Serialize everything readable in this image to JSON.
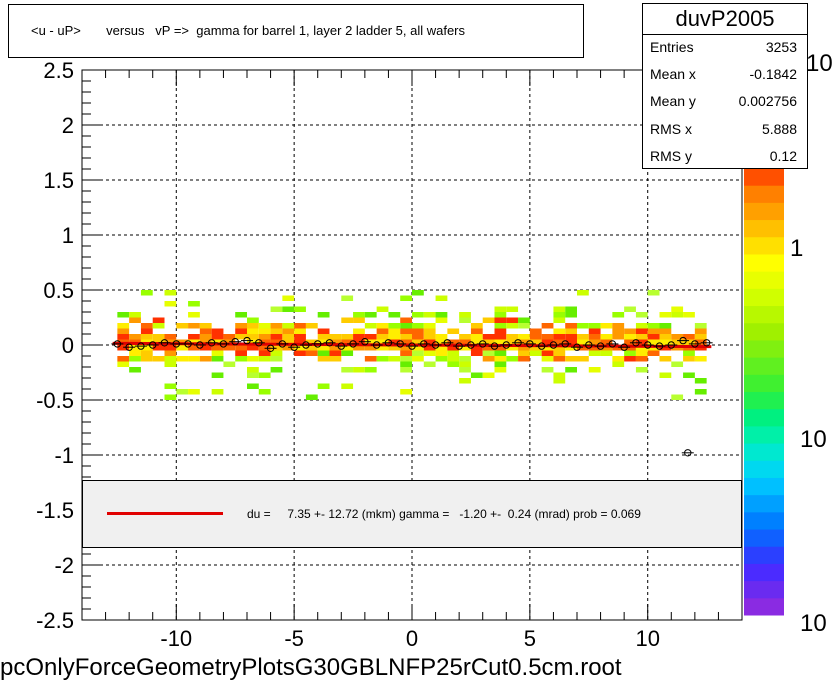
{
  "title": "<u - uP>       versus   vP =>  gamma for barrel 1, layer 2 ladder 5, all wafers",
  "stats": {
    "name": "duvP2005",
    "rows": [
      {
        "label": "Entries",
        "value": "3253"
      },
      {
        "label": "Mean x",
        "value": "-0.1842"
      },
      {
        "label": "Mean y",
        "value": "0.002756"
      },
      {
        "label": "RMS x",
        "value": "5.888"
      },
      {
        "label": "RMS y",
        "value": "0.12"
      }
    ]
  },
  "fit_legend": "du =     7.35 +- 12.72 (mkm) gamma =   -1.20 +-  0.24 (mrad) prob = 0.069",
  "filename": "pcOnlyForceGeometryPlotsG30GBLNFP25rCut0.5cm.root",
  "palette_labels": [
    "10",
    "1",
    "10",
    "10"
  ],
  "colors": {
    "fit": "#e00000",
    "grid": "#000000"
  },
  "chart_data": {
    "type": "scatter",
    "xlim": [
      -14,
      14
    ],
    "ylim": [
      -2.5,
      2.5
    ],
    "xticks": [
      -10,
      -5,
      0,
      5,
      10
    ],
    "yticks": [
      2.5,
      2,
      1.5,
      1,
      0.5,
      0,
      -0.5,
      -1,
      -1.5,
      -2,
      -2.5
    ],
    "grid": true,
    "fit_line": {
      "x": [
        -12.7,
        12.7
      ],
      "y": [
        0.015,
        -0.015
      ]
    },
    "profile": {
      "x": [
        -12.5,
        -12.0,
        -11.5,
        -11.0,
        -10.5,
        -10.0,
        -9.5,
        -9.0,
        -8.5,
        -8.0,
        -7.5,
        -7.0,
        -6.5,
        -6.0,
        -5.5,
        -5.0,
        -4.5,
        -4.0,
        -3.5,
        -3.0,
        -2.5,
        -2.0,
        -1.5,
        -1.0,
        -0.5,
        0.0,
        0.5,
        1.0,
        1.5,
        2.0,
        2.5,
        3.0,
        3.5,
        4.0,
        4.5,
        5.0,
        5.5,
        6.0,
        6.5,
        7.0,
        7.5,
        8.0,
        8.5,
        9.0,
        9.5,
        10.0,
        10.5,
        11.0,
        11.5,
        12.0,
        12.5,
        11.7
      ],
      "y": [
        0.01,
        -0.02,
        -0.01,
        0.0,
        0.02,
        0.01,
        0.01,
        0.0,
        0.02,
        0.01,
        0.03,
        0.04,
        0.02,
        -0.03,
        0.01,
        -0.02,
        0.0,
        0.01,
        0.02,
        -0.01,
        0.01,
        0.03,
        0.0,
        0.02,
        0.01,
        -0.01,
        0.01,
        0.0,
        0.02,
        -0.01,
        0.0,
        0.01,
        -0.01,
        0.0,
        0.02,
        0.01,
        -0.01,
        0.0,
        0.01,
        -0.02,
        0.0,
        -0.01,
        0.01,
        -0.02,
        0.02,
        0.0,
        -0.01,
        0.0,
        0.04,
        0.01,
        0.02,
        -0.98
      ]
    }
  }
}
